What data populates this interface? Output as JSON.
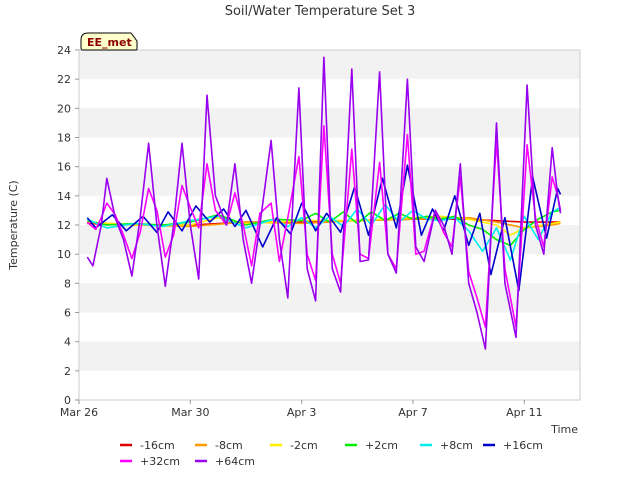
{
  "chart_data": {
    "type": "line",
    "title": "Soil/Water Temperature Set 3",
    "badge": "EE_met",
    "xlabel": "Time",
    "ylabel": "Temperature (C)",
    "xlim": [
      "Mar 26",
      "Apr 13"
    ],
    "ylim": [
      0,
      24
    ],
    "x_ticks": [
      {
        "day": 0,
        "label": "Mar 26"
      },
      {
        "day": 4,
        "label": "Mar 30"
      },
      {
        "day": 8,
        "label": "Apr 3"
      },
      {
        "day": 12,
        "label": "Apr 7"
      },
      {
        "day": 16,
        "label": "Apr 11"
      }
    ],
    "y_ticks": [
      0,
      2,
      4,
      6,
      8,
      10,
      12,
      14,
      16,
      18,
      20,
      22,
      24
    ],
    "grid": "horizontal alternating bands",
    "legend_position": "bottom",
    "series": [
      {
        "name": "-16cm",
        "color": "#dd0000",
        "points": [
          [
            0.3,
            12.1
          ],
          [
            2,
            12.0
          ],
          [
            4,
            12.0
          ],
          [
            6,
            12.2
          ],
          [
            8,
            12.2
          ],
          [
            10,
            12.3
          ],
          [
            12,
            12.4
          ],
          [
            14,
            12.4
          ],
          [
            16,
            12.2
          ],
          [
            17.3,
            12.2
          ]
        ]
      },
      {
        "name": "-8cm",
        "color": "#ff9900",
        "points": [
          [
            0.3,
            12.2
          ],
          [
            2,
            12.0
          ],
          [
            4,
            11.9
          ],
          [
            6,
            12.2
          ],
          [
            8,
            12.1
          ],
          [
            10,
            12.3
          ],
          [
            12,
            12.4
          ],
          [
            14,
            12.5
          ],
          [
            15,
            12.2
          ],
          [
            16,
            11.8
          ],
          [
            17,
            12.0
          ],
          [
            17.3,
            12.1
          ]
        ]
      },
      {
        "name": "-2cm",
        "color": "#ffee00",
        "points": [
          [
            0.3,
            12.2
          ],
          [
            2,
            12.0
          ],
          [
            4,
            12.0
          ],
          [
            5,
            12.5
          ],
          [
            6,
            12.1
          ],
          [
            8,
            12.3
          ],
          [
            10,
            12.3
          ],
          [
            12,
            12.5
          ],
          [
            13,
            12.6
          ],
          [
            14,
            12.4
          ],
          [
            15,
            12.0
          ],
          [
            15.5,
            11.3
          ],
          [
            16,
            11.8
          ],
          [
            17,
            12.1
          ],
          [
            17.3,
            12.2
          ]
        ]
      },
      {
        "name": "+2cm",
        "color": "#00ee00",
        "points": [
          [
            0.3,
            12.3
          ],
          [
            1,
            12.0
          ],
          [
            2,
            12.1
          ],
          [
            3,
            12.0
          ],
          [
            4,
            12.2
          ],
          [
            5,
            12.7
          ],
          [
            6,
            12.0
          ],
          [
            7,
            12.4
          ],
          [
            8,
            12.3
          ],
          [
            8.5,
            12.8
          ],
          [
            9,
            12.2
          ],
          [
            9.5,
            12.9
          ],
          [
            10,
            12.1
          ],
          [
            10.5,
            12.9
          ],
          [
            11,
            12.3
          ],
          [
            11.5,
            12.8
          ],
          [
            12,
            12.4
          ],
          [
            12.5,
            12.6
          ],
          [
            13,
            12.4
          ],
          [
            13.5,
            12.6
          ],
          [
            14,
            12.0
          ],
          [
            14.5,
            11.7
          ],
          [
            15,
            11.0
          ],
          [
            15.5,
            10.6
          ],
          [
            16,
            11.7
          ],
          [
            16.5,
            12.4
          ],
          [
            17,
            12.9
          ],
          [
            17.3,
            13.0
          ]
        ]
      },
      {
        "name": "+8cm",
        "color": "#00eeee",
        "points": [
          [
            0.3,
            12.4
          ],
          [
            1,
            11.8
          ],
          [
            2,
            12.1
          ],
          [
            3,
            11.9
          ],
          [
            4,
            12.3
          ],
          [
            5,
            12.6
          ],
          [
            6,
            11.8
          ],
          [
            7,
            12.4
          ],
          [
            7.5,
            11.9
          ],
          [
            8,
            12.5
          ],
          [
            8.5,
            11.8
          ],
          [
            9,
            12.6
          ],
          [
            9.5,
            11.9
          ],
          [
            10,
            13.1
          ],
          [
            10.5,
            12.0
          ],
          [
            11,
            13.4
          ],
          [
            11.5,
            12.2
          ],
          [
            12,
            13.0
          ],
          [
            12.5,
            12.4
          ],
          [
            13,
            12.3
          ],
          [
            13.5,
            12.5
          ],
          [
            14,
            11.6
          ],
          [
            14.5,
            10.2
          ],
          [
            15,
            11.8
          ],
          [
            15.5,
            9.6
          ],
          [
            16,
            12.6
          ],
          [
            16.5,
            11.0
          ],
          [
            17,
            12.9
          ],
          [
            17.3,
            13.2
          ]
        ]
      },
      {
        "name": "+16cm",
        "color": "#0000cc",
        "points": [
          [
            0.3,
            12.5
          ],
          [
            0.6,
            11.8
          ],
          [
            1.2,
            12.7
          ],
          [
            1.7,
            11.6
          ],
          [
            2.3,
            12.6
          ],
          [
            2.8,
            11.5
          ],
          [
            3.2,
            12.9
          ],
          [
            3.7,
            11.6
          ],
          [
            4.2,
            13.3
          ],
          [
            4.7,
            12.2
          ],
          [
            5.2,
            13.1
          ],
          [
            5.6,
            11.9
          ],
          [
            6.0,
            13.0
          ],
          [
            6.6,
            10.5
          ],
          [
            7.1,
            12.5
          ],
          [
            7.6,
            11.4
          ],
          [
            8.0,
            13.5
          ],
          [
            8.5,
            11.6
          ],
          [
            8.9,
            12.8
          ],
          [
            9.4,
            11.5
          ],
          [
            9.9,
            14.6
          ],
          [
            10.4,
            11.3
          ],
          [
            10.9,
            15.2
          ],
          [
            11.4,
            11.8
          ],
          [
            11.8,
            16.1
          ],
          [
            12.3,
            11.3
          ],
          [
            12.7,
            13.1
          ],
          [
            13.1,
            11.6
          ],
          [
            13.5,
            14.0
          ],
          [
            14.0,
            10.6
          ],
          [
            14.4,
            12.8
          ],
          [
            14.8,
            8.6
          ],
          [
            15.3,
            12.5
          ],
          [
            15.8,
            7.5
          ],
          [
            16.3,
            15.3
          ],
          [
            16.8,
            11.1
          ],
          [
            17.2,
            14.5
          ],
          [
            17.3,
            14.1
          ]
        ]
      },
      {
        "name": "+32cm",
        "color": "#ff00ff",
        "points": [
          [
            0.3,
            12.2
          ],
          [
            0.6,
            11.7
          ],
          [
            0.8,
            12.5
          ],
          [
            1.0,
            13.5
          ],
          [
            1.3,
            12.7
          ],
          [
            1.6,
            11.3
          ],
          [
            1.9,
            9.7
          ],
          [
            2.2,
            11.5
          ],
          [
            2.5,
            14.5
          ],
          [
            2.8,
            13.0
          ],
          [
            3.1,
            9.8
          ],
          [
            3.4,
            11.3
          ],
          [
            3.7,
            14.7
          ],
          [
            4.0,
            13.2
          ],
          [
            4.3,
            11.8
          ],
          [
            4.6,
            16.2
          ],
          [
            4.9,
            13.0
          ],
          [
            5.3,
            12.0
          ],
          [
            5.6,
            14.2
          ],
          [
            5.9,
            12.0
          ],
          [
            6.2,
            9.2
          ],
          [
            6.5,
            12.8
          ],
          [
            6.9,
            13.5
          ],
          [
            7.2,
            9.5
          ],
          [
            7.5,
            12.5
          ],
          [
            7.9,
            16.7
          ],
          [
            8.2,
            10.0
          ],
          [
            8.5,
            8.2
          ],
          [
            8.8,
            18.8
          ],
          [
            9.1,
            10.0
          ],
          [
            9.4,
            8.0
          ],
          [
            9.8,
            17.2
          ],
          [
            10.1,
            10.0
          ],
          [
            10.4,
            9.7
          ],
          [
            10.8,
            16.3
          ],
          [
            11.1,
            10.0
          ],
          [
            11.4,
            9.0
          ],
          [
            11.8,
            18.2
          ],
          [
            12.1,
            10.0
          ],
          [
            12.4,
            10.2
          ],
          [
            12.8,
            13.0
          ],
          [
            13.1,
            11.5
          ],
          [
            13.4,
            10.5
          ],
          [
            13.7,
            15.3
          ],
          [
            14.0,
            8.8
          ],
          [
            14.3,
            7.0
          ],
          [
            14.6,
            5.0
          ],
          [
            15.0,
            17.8
          ],
          [
            15.3,
            9.0
          ],
          [
            15.7,
            5.0
          ],
          [
            16.1,
            17.5
          ],
          [
            16.4,
            12.5
          ],
          [
            16.7,
            10.5
          ],
          [
            17.0,
            15.3
          ],
          [
            17.2,
            14.0
          ],
          [
            17.3,
            13.0
          ]
        ]
      },
      {
        "name": "+64cm",
        "color": "#9900ee",
        "points": [
          [
            0.3,
            9.8
          ],
          [
            0.5,
            9.2
          ],
          [
            0.8,
            12.0
          ],
          [
            1.0,
            15.2
          ],
          [
            1.3,
            12.5
          ],
          [
            1.6,
            11.0
          ],
          [
            1.9,
            8.5
          ],
          [
            2.2,
            12.5
          ],
          [
            2.5,
            17.6
          ],
          [
            2.8,
            12.0
          ],
          [
            3.1,
            7.8
          ],
          [
            3.4,
            12.0
          ],
          [
            3.7,
            17.6
          ],
          [
            4.0,
            12.0
          ],
          [
            4.3,
            8.3
          ],
          [
            4.6,
            20.9
          ],
          [
            4.9,
            14.0
          ],
          [
            5.3,
            12.0
          ],
          [
            5.6,
            16.2
          ],
          [
            5.9,
            11.0
          ],
          [
            6.2,
            8.0
          ],
          [
            6.5,
            12.0
          ],
          [
            6.9,
            17.8
          ],
          [
            7.2,
            11.0
          ],
          [
            7.5,
            7.0
          ],
          [
            7.9,
            21.4
          ],
          [
            8.2,
            9.0
          ],
          [
            8.5,
            6.8
          ],
          [
            8.8,
            23.5
          ],
          [
            9.1,
            9.0
          ],
          [
            9.4,
            7.4
          ],
          [
            9.8,
            22.7
          ],
          [
            10.1,
            9.5
          ],
          [
            10.4,
            9.6
          ],
          [
            10.8,
            22.5
          ],
          [
            11.1,
            10.0
          ],
          [
            11.4,
            8.7
          ],
          [
            11.8,
            22.0
          ],
          [
            12.1,
            10.5
          ],
          [
            12.4,
            9.5
          ],
          [
            12.8,
            13.0
          ],
          [
            13.1,
            12.0
          ],
          [
            13.4,
            10.0
          ],
          [
            13.7,
            16.2
          ],
          [
            14.0,
            8.0
          ],
          [
            14.3,
            6.0
          ],
          [
            14.6,
            3.5
          ],
          [
            15.0,
            19.0
          ],
          [
            15.3,
            8.0
          ],
          [
            15.7,
            4.3
          ],
          [
            16.1,
            21.6
          ],
          [
            16.4,
            12.0
          ],
          [
            16.7,
            10.0
          ],
          [
            17.0,
            17.3
          ],
          [
            17.2,
            14.0
          ],
          [
            17.3,
            12.8
          ]
        ]
      }
    ]
  }
}
